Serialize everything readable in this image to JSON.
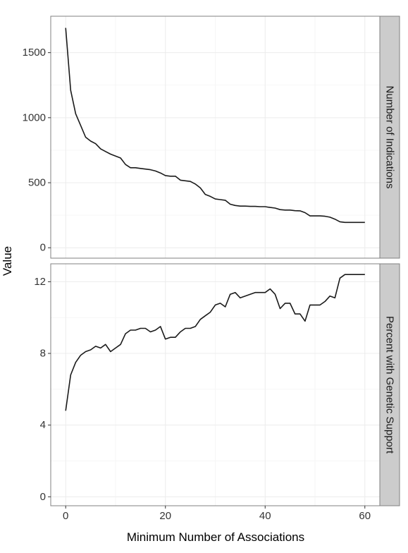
{
  "chart_data": {
    "type": "line",
    "xlabel": "Minimum Number of Associations",
    "ylabel": "Value",
    "xlim": [
      -3,
      63
    ],
    "x_ticks": [
      0,
      20,
      40,
      60
    ],
    "x_tick_labels": [
      "0",
      "20",
      "40",
      "60"
    ],
    "grid": true,
    "colors": {
      "line": "#1a1a1a",
      "panel_border": "#808080",
      "strip_fill": "#cccccc",
      "grid": "#ececec"
    },
    "panels": [
      {
        "strip": "Number of Indications",
        "ylim": [
          -80,
          1780
        ],
        "y_ticks": [
          0,
          500,
          1000,
          1500
        ],
        "y_tick_labels": [
          "0",
          "500",
          "1000",
          "1500"
        ],
        "x": [
          0,
          1,
          2,
          3,
          4,
          5,
          6,
          7,
          8,
          9,
          10,
          11,
          12,
          13,
          14,
          15,
          16,
          17,
          18,
          19,
          20,
          21,
          22,
          23,
          24,
          25,
          26,
          27,
          28,
          29,
          30,
          31,
          32,
          33,
          34,
          35,
          36,
          37,
          38,
          39,
          40,
          41,
          42,
          43,
          44,
          45,
          46,
          47,
          48,
          49,
          50,
          51,
          52,
          53,
          54,
          55,
          56,
          57,
          58,
          59,
          60
        ],
        "y": [
          1690,
          1210,
          1030,
          940,
          850,
          820,
          800,
          760,
          740,
          720,
          705,
          690,
          640,
          615,
          615,
          610,
          605,
          600,
          590,
          575,
          555,
          550,
          550,
          520,
          515,
          510,
          490,
          460,
          410,
          395,
          375,
          370,
          365,
          335,
          325,
          320,
          320,
          318,
          318,
          316,
          316,
          310,
          305,
          293,
          290,
          290,
          285,
          284,
          270,
          245,
          245,
          245,
          242,
          235,
          220,
          200,
          195,
          195,
          195,
          195,
          195
        ]
      },
      {
        "strip": "Percent with Genetic Support",
        "ylim": [
          -0.5,
          13.0
        ],
        "y_ticks": [
          0,
          4,
          8,
          12
        ],
        "y_tick_labels": [
          "0",
          "4",
          "8",
          "12"
        ],
        "x": [
          0,
          1,
          2,
          3,
          4,
          5,
          6,
          7,
          8,
          9,
          10,
          11,
          12,
          13,
          14,
          15,
          16,
          17,
          18,
          19,
          20,
          21,
          22,
          23,
          24,
          25,
          26,
          27,
          28,
          29,
          30,
          31,
          32,
          33,
          34,
          35,
          36,
          37,
          38,
          39,
          40,
          41,
          42,
          43,
          44,
          45,
          46,
          47,
          48,
          49,
          50,
          51,
          52,
          53,
          54,
          55,
          56,
          57,
          58,
          59,
          60
        ],
        "y": [
          4.8,
          6.8,
          7.5,
          7.9,
          8.1,
          8.2,
          8.4,
          8.3,
          8.5,
          8.1,
          8.3,
          8.5,
          9.1,
          9.3,
          9.3,
          9.4,
          9.4,
          9.2,
          9.3,
          9.5,
          8.8,
          8.9,
          8.9,
          9.2,
          9.4,
          9.4,
          9.5,
          9.9,
          10.1,
          10.3,
          10.7,
          10.8,
          10.6,
          11.3,
          11.4,
          11.1,
          11.2,
          11.3,
          11.4,
          11.4,
          11.4,
          11.6,
          11.3,
          10.5,
          10.8,
          10.8,
          10.2,
          10.2,
          9.8,
          10.7,
          10.7,
          10.7,
          10.9,
          11.2,
          11.1,
          12.2,
          12.4,
          12.4,
          12.4,
          12.4,
          12.4
        ]
      }
    ]
  }
}
